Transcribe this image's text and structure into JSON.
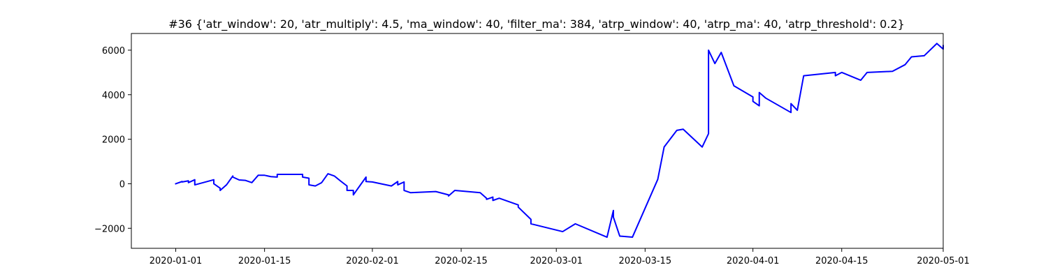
{
  "chart_data": {
    "type": "line",
    "title": "#36 {'atr_window': 20, 'atr_multiply': 4.5, 'ma_window': 40, 'filter_ma': 384, 'atrp_window': 40, 'atrp_ma': 40, 'atrp_threshold': 0.2}",
    "xlabel": "",
    "ylabel": "",
    "x_axis_type": "date",
    "xlim": [
      "2019-12-25",
      "2020-05-01"
    ],
    "ylim": [
      -2900,
      6750
    ],
    "grid": false,
    "legend": "none",
    "x_ticks": [
      "2020-01-01",
      "2020-01-15",
      "2020-02-01",
      "2020-02-15",
      "2020-03-01",
      "2020-03-15",
      "2020-04-01",
      "2020-04-15",
      "2020-05-01"
    ],
    "x_tick_labels": [
      "2020-01-01",
      "2020-01-15",
      "2020-02-01",
      "2020-02-15",
      "2020-03-01",
      "2020-03-15",
      "2020-04-01",
      "2020-04-15",
      "2020-05-01"
    ],
    "y_ticks": [
      -2000,
      0,
      2000,
      4000,
      6000
    ],
    "y_tick_labels": [
      "−2000",
      "0",
      "2000",
      "4000",
      "6000"
    ],
    "line_color": "#0000ff",
    "series": [
      {
        "x": [
          "2020-01-01",
          "2020-01-02",
          "2020-01-02",
          "2020-01-03",
          "2020-01-03",
          "2020-01-04",
          "2020-01-04",
          "2020-01-07",
          "2020-01-07",
          "2020-01-08",
          "2020-01-08",
          "2020-01-09",
          "2020-01-10",
          "2020-01-10",
          "2020-01-11",
          "2020-01-12",
          "2020-01-13",
          "2020-01-14",
          "2020-01-15",
          "2020-01-16",
          "2020-01-17",
          "2020-01-17",
          "2020-01-21",
          "2020-01-21",
          "2020-01-22",
          "2020-01-22",
          "2020-01-23",
          "2020-01-24",
          "2020-01-25",
          "2020-01-26",
          "2020-01-27",
          "2020-01-28",
          "2020-01-28",
          "2020-01-29",
          "2020-01-29",
          "2020-01-30",
          "2020-01-31",
          "2020-01-31",
          "2020-02-01",
          "2020-02-04",
          "2020-02-05",
          "2020-02-05",
          "2020-02-06",
          "2020-02-06",
          "2020-02-07",
          "2020-02-11",
          "2020-02-11",
          "2020-02-13",
          "2020-02-13",
          "2020-02-14",
          "2020-02-14",
          "2020-02-18",
          "2020-02-19",
          "2020-02-19",
          "2020-02-20",
          "2020-02-20",
          "2020-02-21",
          "2020-02-24",
          "2020-02-24",
          "2020-02-26",
          "2020-02-26",
          "2020-03-02",
          "2020-03-04",
          "2020-03-09",
          "2020-03-10",
          "2020-03-10",
          "2020-03-11",
          "2020-03-13",
          "2020-03-17",
          "2020-03-18",
          "2020-03-20",
          "2020-03-21",
          "2020-03-24",
          "2020-03-25",
          "2020-03-25",
          "2020-03-25",
          "2020-03-26",
          "2020-03-27",
          "2020-03-29",
          "2020-04-01",
          "2020-04-01",
          "2020-04-02",
          "2020-04-02",
          "2020-04-03",
          "2020-04-07",
          "2020-04-07",
          "2020-04-08",
          "2020-04-09",
          "2020-04-14",
          "2020-04-14",
          "2020-04-15",
          "2020-04-18",
          "2020-04-19",
          "2020-04-23",
          "2020-04-25",
          "2020-04-26",
          "2020-04-28",
          "2020-04-30",
          "2020-05-01",
          "2020-05-01"
        ],
        "y": [
          0,
          100,
          80,
          130,
          50,
          180,
          -50,
          180,
          0,
          -200,
          -300,
          -50,
          350,
          300,
          170,
          150,
          50,
          380,
          380,
          320,
          300,
          420,
          420,
          300,
          250,
          -50,
          -100,
          50,
          450,
          350,
          120,
          -100,
          -300,
          -300,
          -500,
          -100,
          300,
          100,
          80,
          -100,
          100,
          -50,
          80,
          -300,
          -400,
          -350,
          -350,
          -500,
          -550,
          -300,
          -300,
          -400,
          -650,
          -700,
          -600,
          -750,
          -650,
          -950,
          -1050,
          -1600,
          -1800,
          -2150,
          -1800,
          -2400,
          -1200,
          -1500,
          -2350,
          -2400,
          200,
          1650,
          2400,
          2450,
          1650,
          2250,
          4300,
          6000,
          5400,
          5900,
          4400,
          3900,
          3700,
          3500,
          4100,
          3850,
          3200,
          3600,
          3300,
          4850,
          5000,
          4850,
          5000,
          4650,
          5000,
          5050,
          5350,
          5700,
          5750,
          6300,
          6050,
          6200
        ]
      }
    ]
  }
}
